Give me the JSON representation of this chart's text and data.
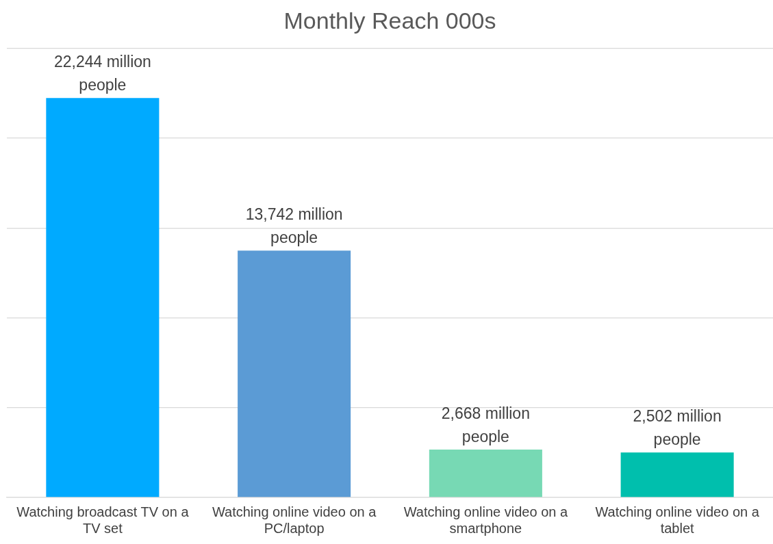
{
  "chart_data": {
    "type": "bar",
    "title": "Monthly Reach 000s",
    "categories": [
      "Watching broadcast TV on a TV set",
      "Watching online video on a PC/laptop",
      "Watching online video on a smartphone",
      "Watching online video on a tablet"
    ],
    "values": [
      22244,
      13742,
      2668,
      2502
    ],
    "colors": [
      "#00aaff",
      "#5b9bd5",
      "#77d9b4",
      "#00bfad"
    ],
    "value_labels": [
      "22,244 million people",
      "13,742 million people",
      "2,668 million people",
      "2,502 million people"
    ],
    "ylim": [
      0,
      25000
    ],
    "yticks": [
      {
        "value": 0,
        "label": null
      },
      {
        "value": 5000,
        "label": null
      },
      {
        "value": 10000,
        "label": null
      },
      {
        "value": 15000,
        "label": null
      },
      {
        "value": 20000,
        "label": null
      },
      {
        "value": 25000,
        "label": null
      }
    ],
    "grid": "y",
    "tick_labels": "x",
    "legend": false
  }
}
